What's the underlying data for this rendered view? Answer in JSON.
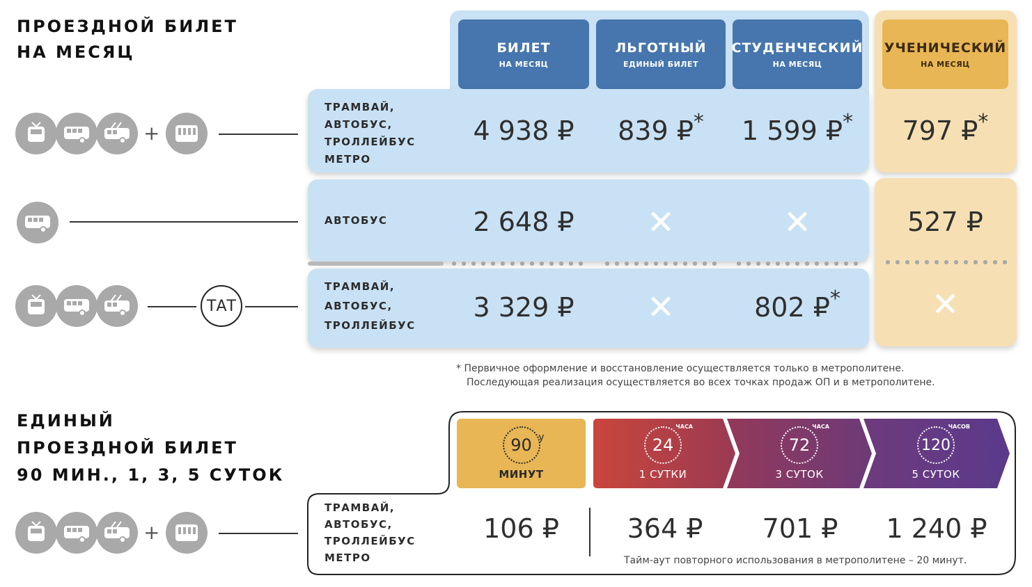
{
  "monthly": {
    "title_line1": "ПРОЕЗДНОЙ БИЛЕТ",
    "title_line2": "НА МЕСЯЦ",
    "headers": [
      {
        "title": "БИЛЕТ",
        "sub": "НА МЕСЯЦ"
      },
      {
        "title": "ЛЬГОТНЫЙ",
        "sub": "ЕДИНЫЙ БИЛЕТ"
      },
      {
        "title": "СТУДЕНЧЕСКИЙ",
        "sub": "НА МЕСЯЦ"
      },
      {
        "title": "УЧЕНИЧЕСКИЙ",
        "sub": "НА МЕСЯЦ"
      }
    ],
    "rows": [
      {
        "mode_lines": [
          "ТРАМВАЙ,",
          "АВТОБУС,",
          "ТРОЛЛЕЙБУС",
          "МЕТРО"
        ],
        "prices": [
          "4 938 ₽",
          "839 ₽",
          "1 599 ₽",
          "797 ₽"
        ],
        "stars": [
          "",
          "*",
          "*",
          "*"
        ]
      },
      {
        "mode_lines": [
          "АВТОБУС"
        ],
        "prices": [
          "2 648 ₽",
          "✕",
          "✕",
          "527 ₽"
        ],
        "stars": [
          "",
          "",
          "",
          ""
        ]
      },
      {
        "mode_lines": [
          "ТРАМВАЙ,",
          "АВТОБУС,",
          "ТРОЛЛЕЙБУС"
        ],
        "prices": [
          "3 329 ₽",
          "✕",
          "802 ₽",
          "✕"
        ],
        "stars": [
          "",
          "",
          "*",
          ""
        ],
        "badge": "ТАТ"
      }
    ],
    "plus": "+",
    "footnote_line1": "* Первичное оформление и восстановление осуществляется только в метрополитене.",
    "footnote_line2": "Последующая реализация осуществляется во всех точках продаж ОП и в метрополитене."
  },
  "single": {
    "title_line1": "ЕДИНЫЙ",
    "title_line2": "ПРОЕЗДНОЙ БИЛЕТ",
    "title_line3": "90 МИН., 1, 3, 5 СУТОК",
    "headers": [
      {
        "num": "90",
        "sup": "",
        "label": "МИНУТ"
      },
      {
        "num": "24",
        "sup": "ЧАСА",
        "label": "1 СУТКИ"
      },
      {
        "num": "72",
        "sup": "ЧАСА",
        "label": "3 СУТОК"
      },
      {
        "num": "120",
        "sup": "ЧАСОВ",
        "label": "5 СУТОК"
      }
    ],
    "mode_lines": [
      "ТРАМВАЙ,",
      "АВТОБУС,",
      "ТРОЛЛЕЙБУС",
      "МЕТРО"
    ],
    "prices": [
      "106 ₽",
      "364 ₽",
      "701 ₽",
      "1 240 ₽"
    ],
    "timeout_note": "Тайм-аут повторного использования в метрополитене – 20 минут.",
    "plus": "+"
  },
  "colors": {
    "blue_header": "#4676ad",
    "blue_panel": "#c9e1f4",
    "yellow_header": "#e8b655",
    "yellow_panel": "#f6e0b3",
    "red_start": "#c9463c",
    "purple_end": "#5a3a8c"
  },
  "icons": [
    "tram-icon",
    "bus-icon",
    "trolleybus-icon",
    "metro-train-icon"
  ]
}
